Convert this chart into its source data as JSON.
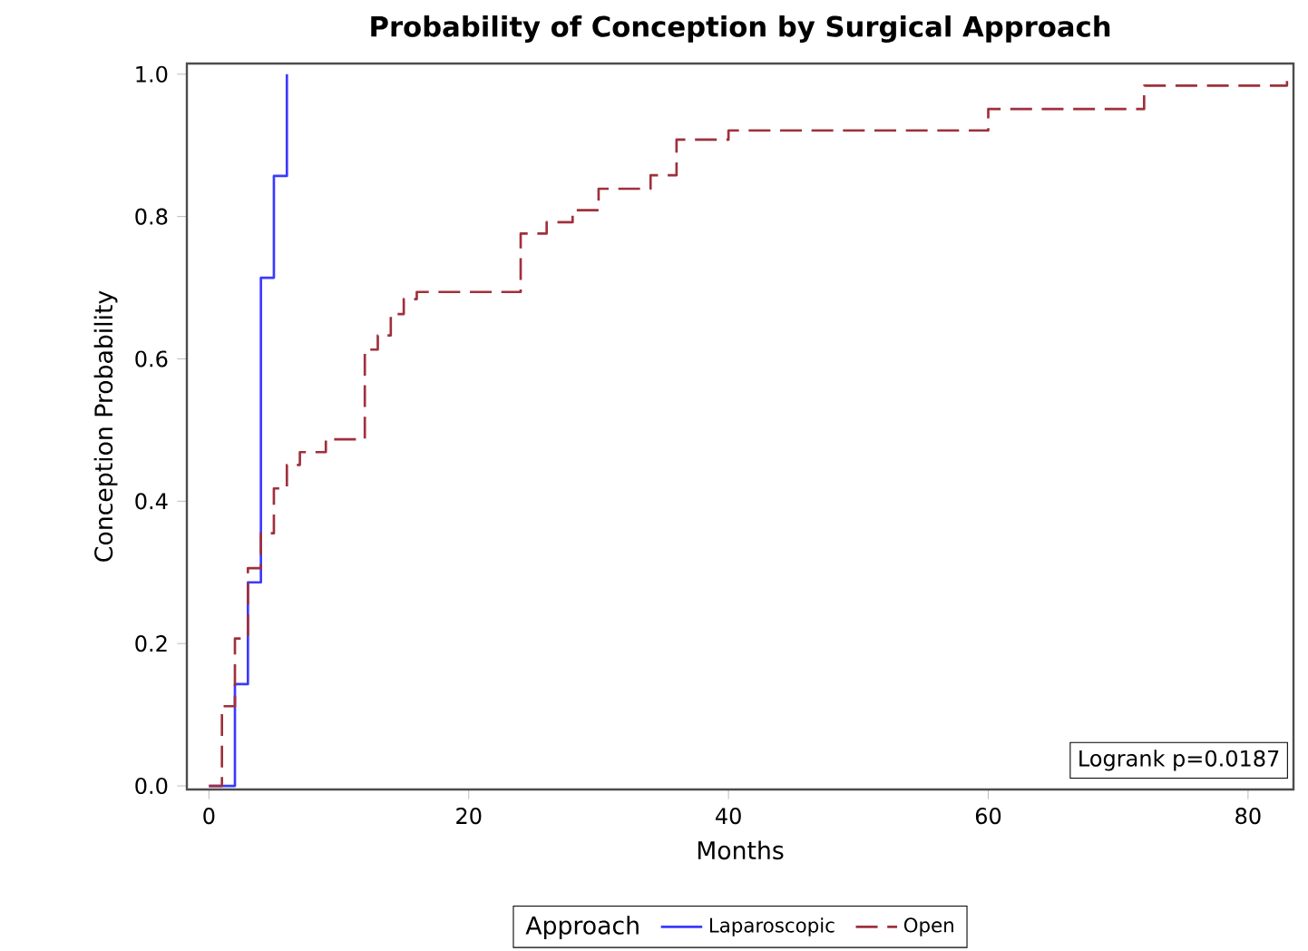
{
  "chart_data": {
    "type": "step",
    "title": "Probability of Conception by Surgical Approach",
    "xlabel": "Months",
    "ylabel": "Conception Probability",
    "legend_title": "Approach",
    "series": [
      {
        "name": "Laparoscopic",
        "color": "#3a3aff",
        "line_style": "solid",
        "x": [
          0,
          2,
          3,
          4,
          5,
          6
        ],
        "values": [
          0,
          0.143,
          0.286,
          0.714,
          0.857,
          1.0
        ]
      },
      {
        "name": "Open",
        "color": "#a0303c",
        "line_style": "dashed",
        "x": [
          0,
          1,
          2,
          3,
          4,
          5,
          6,
          7,
          9,
          12,
          13,
          14,
          15,
          16,
          24,
          26,
          28,
          30,
          34,
          36,
          40,
          60,
          72,
          83,
          83.5
        ],
        "values": [
          0,
          0.112,
          0.207,
          0.306,
          0.355,
          0.418,
          0.451,
          0.469,
          0.487,
          0.613,
          0.633,
          0.663,
          0.684,
          0.694,
          0.776,
          0.792,
          0.809,
          0.839,
          0.858,
          0.908,
          0.921,
          0.951,
          0.984,
          0.995,
          0.995
        ]
      }
    ],
    "xlim": [
      -1.7,
      83.5
    ],
    "ylim": [
      -0.005,
      1.015
    ],
    "xticks": [
      0,
      20,
      40,
      60,
      80
    ],
    "yticks": [
      {
        "value": 0,
        "label": "0.0"
      },
      {
        "value": 0.2,
        "label": "0.2"
      },
      {
        "value": 0.4,
        "label": "0.4"
      },
      {
        "value": 0.6,
        "label": "0.6"
      },
      {
        "value": 0.8,
        "label": "0.8"
      },
      {
        "value": 1.0,
        "label": "1.0"
      }
    ],
    "annotations": [
      "Logrank p=0.0187"
    ],
    "grid": false,
    "legend": "bottom"
  }
}
